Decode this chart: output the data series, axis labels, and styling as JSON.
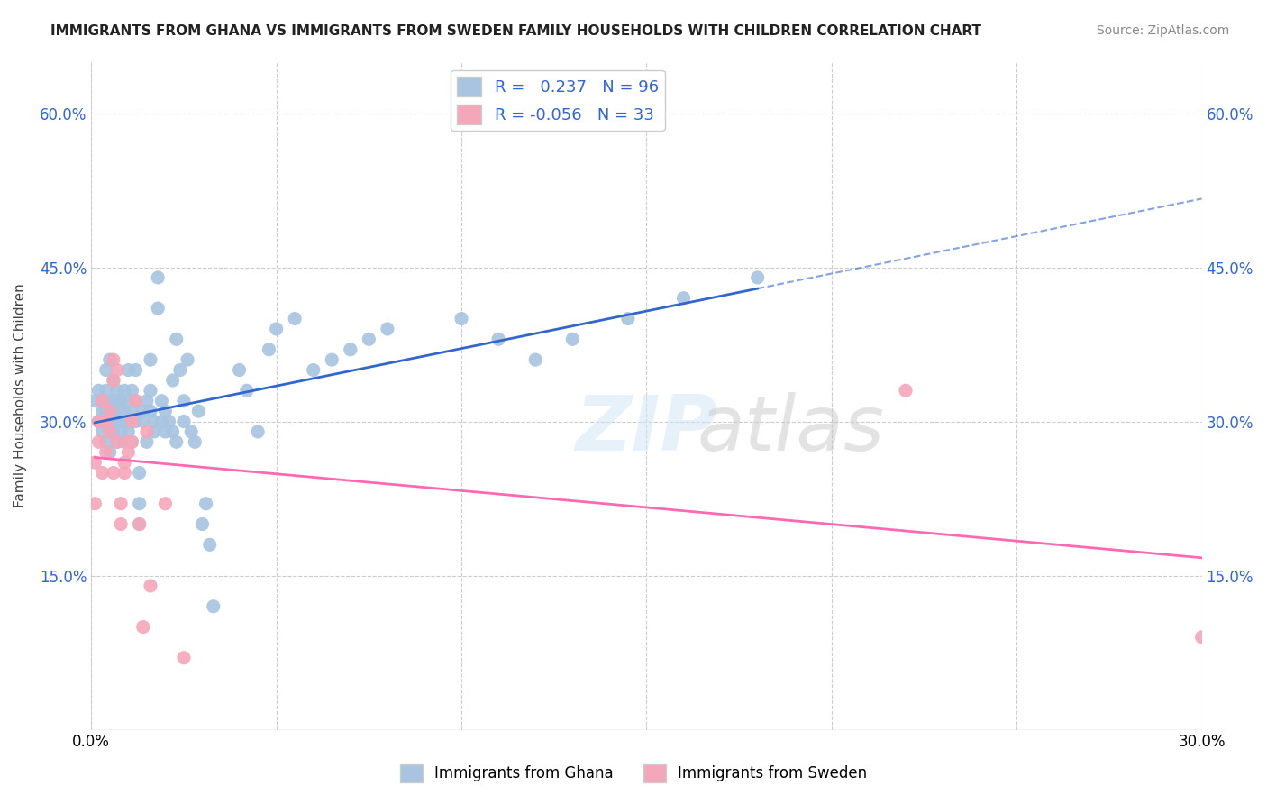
{
  "title": "IMMIGRANTS FROM GHANA VS IMMIGRANTS FROM SWEDEN FAMILY HOUSEHOLDS WITH CHILDREN CORRELATION CHART",
  "source": "Source: ZipAtlas.com",
  "xlabel": "",
  "ylabel": "Family Households with Children",
  "xlim": [
    0.0,
    0.3
  ],
  "ylim": [
    0.0,
    0.65
  ],
  "x_ticks": [
    0.0,
    0.05,
    0.1,
    0.15,
    0.2,
    0.25,
    0.3
  ],
  "x_tick_labels": [
    "0.0%",
    "",
    "",
    "",
    "",
    "",
    "30.0%"
  ],
  "y_ticks": [
    0.0,
    0.15,
    0.3,
    0.45,
    0.6
  ],
  "y_tick_labels_left": [
    "",
    "15.0%",
    "30.0%",
    "45.0%",
    "60.0%"
  ],
  "y_tick_labels_right": [
    "",
    "15.0%",
    "30.0%",
    "45.0%",
    "60.0%"
  ],
  "ghana_color": "#a8c4e0",
  "sweden_color": "#f4a7b9",
  "ghana_line_color": "#3366cc",
  "sweden_line_color": "#ff69b4",
  "ghana_R": 0.237,
  "ghana_N": 96,
  "sweden_R": -0.056,
  "sweden_N": 33,
  "watermark": "ZIPatlas",
  "background_color": "#ffffff",
  "ghana_x": [
    0.001,
    0.002,
    0.002,
    0.003,
    0.003,
    0.003,
    0.004,
    0.004,
    0.004,
    0.004,
    0.004,
    0.005,
    0.005,
    0.005,
    0.005,
    0.005,
    0.005,
    0.006,
    0.006,
    0.006,
    0.006,
    0.006,
    0.007,
    0.007,
    0.007,
    0.007,
    0.007,
    0.008,
    0.008,
    0.008,
    0.008,
    0.009,
    0.009,
    0.009,
    0.01,
    0.01,
    0.01,
    0.01,
    0.011,
    0.011,
    0.011,
    0.012,
    0.012,
    0.012,
    0.013,
    0.013,
    0.013,
    0.014,
    0.014,
    0.015,
    0.015,
    0.016,
    0.016,
    0.016,
    0.017,
    0.017,
    0.018,
    0.018,
    0.019,
    0.019,
    0.02,
    0.02,
    0.021,
    0.022,
    0.022,
    0.023,
    0.023,
    0.024,
    0.025,
    0.025,
    0.026,
    0.027,
    0.028,
    0.029,
    0.03,
    0.031,
    0.032,
    0.033,
    0.04,
    0.042,
    0.045,
    0.048,
    0.05,
    0.055,
    0.06,
    0.065,
    0.07,
    0.075,
    0.08,
    0.1,
    0.11,
    0.12,
    0.13,
    0.145,
    0.16,
    0.18
  ],
  "ghana_y": [
    0.32,
    0.3,
    0.33,
    0.31,
    0.29,
    0.32,
    0.28,
    0.3,
    0.33,
    0.31,
    0.35,
    0.27,
    0.29,
    0.3,
    0.31,
    0.32,
    0.36,
    0.29,
    0.3,
    0.31,
    0.32,
    0.34,
    0.31,
    0.32,
    0.3,
    0.33,
    0.28,
    0.31,
    0.29,
    0.3,
    0.32,
    0.28,
    0.31,
    0.33,
    0.3,
    0.29,
    0.32,
    0.35,
    0.31,
    0.33,
    0.28,
    0.3,
    0.32,
    0.35,
    0.2,
    0.22,
    0.25,
    0.31,
    0.3,
    0.28,
    0.32,
    0.31,
    0.33,
    0.36,
    0.3,
    0.29,
    0.41,
    0.44,
    0.3,
    0.32,
    0.29,
    0.31,
    0.3,
    0.34,
    0.29,
    0.38,
    0.28,
    0.35,
    0.3,
    0.32,
    0.36,
    0.29,
    0.28,
    0.31,
    0.2,
    0.22,
    0.18,
    0.12,
    0.35,
    0.33,
    0.29,
    0.37,
    0.39,
    0.4,
    0.35,
    0.36,
    0.37,
    0.38,
    0.39,
    0.4,
    0.38,
    0.36,
    0.38,
    0.4,
    0.42,
    0.44
  ],
  "sweden_x": [
    0.001,
    0.001,
    0.002,
    0.002,
    0.003,
    0.003,
    0.003,
    0.004,
    0.004,
    0.005,
    0.005,
    0.006,
    0.006,
    0.006,
    0.007,
    0.007,
    0.008,
    0.008,
    0.009,
    0.009,
    0.01,
    0.01,
    0.011,
    0.011,
    0.012,
    0.013,
    0.014,
    0.015,
    0.016,
    0.02,
    0.025,
    0.22,
    0.3
  ],
  "sweden_y": [
    0.26,
    0.22,
    0.28,
    0.3,
    0.25,
    0.3,
    0.32,
    0.27,
    0.3,
    0.29,
    0.31,
    0.34,
    0.36,
    0.25,
    0.28,
    0.35,
    0.2,
    0.22,
    0.25,
    0.26,
    0.28,
    0.27,
    0.3,
    0.28,
    0.32,
    0.2,
    0.1,
    0.29,
    0.14,
    0.22,
    0.07,
    0.33,
    0.09
  ]
}
